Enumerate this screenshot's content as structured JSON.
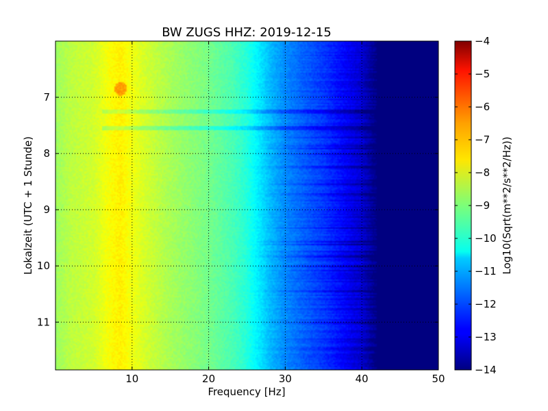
{
  "chart_data": {
    "type": "heatmap",
    "title": "BW ZUGS HHZ: 2019-12-15",
    "xlabel": "Frequency [Hz]",
    "ylabel": "Lokalzeit (UTC + 1 Stunde)",
    "xlim": [
      0,
      50
    ],
    "ylim": [
      6,
      11.85
    ],
    "y_inverted": true,
    "grid": true,
    "x_ticks": [
      10,
      20,
      30,
      40,
      50
    ],
    "y_ticks": [
      7,
      8,
      9,
      10,
      11
    ],
    "colorbar": {
      "label": "Log10(Sqrt(m**2/s**2/Hz))",
      "colormap": "jet",
      "vmin": -14,
      "vmax": -4,
      "ticks": [
        -4,
        -5,
        -6,
        -7,
        -8,
        -9,
        -10,
        -11,
        -12,
        -13,
        -14
      ]
    },
    "spectral_profile": {
      "frequency_hz": [
        0,
        2,
        5,
        7,
        8.5,
        10,
        12,
        15,
        18,
        20,
        23,
        25,
        28,
        30,
        33,
        35,
        38,
        40,
        41,
        42,
        50
      ],
      "level": [
        -8.7,
        -8.4,
        -8.2,
        -7.8,
        -7.6,
        -7.9,
        -8.2,
        -8.6,
        -8.9,
        -9.1,
        -9.5,
        -9.9,
        -10.9,
        -11.4,
        -11.9,
        -12.2,
        -12.8,
        -13.2,
        -13.6,
        -14.0,
        -14.0
      ]
    },
    "highlights": [
      {
        "time_hours": 6.85,
        "frequency_hz": 8.5,
        "level": -6.8
      },
      {
        "time_hours": 7.25,
        "frequency_hz_range": [
          6,
          48
        ],
        "level_offset": -0.6
      },
      {
        "time_hours": 7.55,
        "frequency_hz_range": [
          6,
          45
        ],
        "level_offset": -0.7
      }
    ]
  }
}
